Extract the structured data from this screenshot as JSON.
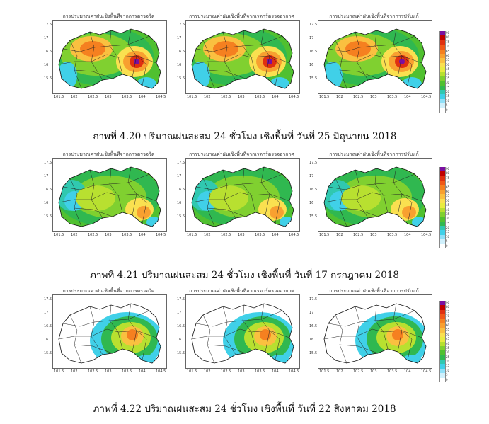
{
  "panel_titles": [
    "การประมาณค่าฝนเชิงพื้นที่จากการตรวจวัด",
    "การประมาณค่าฝนเชิงพื้นที่จากเรดาร์ตรวจอากาศ",
    "การประมาณค่าฝนเชิงพื้นที่จากการปรับแก้"
  ],
  "figures": [
    {
      "caption": "ภาพที่ 4.20 ปริมาณฝนสะสม 24 ชั่วโมง เชิงพื้นที่ วันที่ 25 มิถุนายน 2018",
      "y_ticks": [
        "17.5",
        "17",
        "16.5",
        "16",
        "15.5"
      ],
      "x_ticks": [
        "101.5",
        "102",
        "102.5",
        "103",
        "103.5",
        "104",
        "104.5"
      ]
    },
    {
      "caption": "ภาพที่ 4.21 ปริมาณฝนสะสม 24 ชั่วโมง เชิงพื้นที่ วันที่ 17 กรกฎาคม 2018",
      "y_ticks": [
        "17.5",
        "17",
        "16.5",
        "16",
        "15.5"
      ],
      "x_ticks": [
        "101.5",
        "102",
        "102.5",
        "103",
        "103.5",
        "104",
        "104.5"
      ]
    },
    {
      "caption": "ภาพที่ 4.22 ปริมาณฝนสะสม 24 ชั่วโมง เชิงพื้นที่ วันที่ 22 สิงหาคม 2018",
      "y_ticks": [
        "17.5",
        "17",
        "16.5",
        "16",
        "15.5"
      ],
      "x_ticks": [
        "101.5",
        "102",
        "102.5",
        "103",
        "103.5",
        "104",
        "104.5"
      ]
    }
  ],
  "colorbar": {
    "labels": [
      "90",
      "80",
      "75",
      "70",
      "65",
      "60",
      "55",
      "50",
      "45",
      "40",
      "35",
      "30",
      "25",
      "20",
      "15",
      "10",
      "5",
      "0"
    ],
    "colors": [
      "#7a0fa0",
      "#c00000",
      "#e03010",
      "#f05818",
      "#f58020",
      "#f8a030",
      "#fac040",
      "#fae050",
      "#e8ec40",
      "#b8e030",
      "#80d030",
      "#50c030",
      "#30b850",
      "#30c8b0",
      "#40d0e8",
      "#90e0f8",
      "#d0f0fc",
      "#ffffff"
    ]
  }
}
